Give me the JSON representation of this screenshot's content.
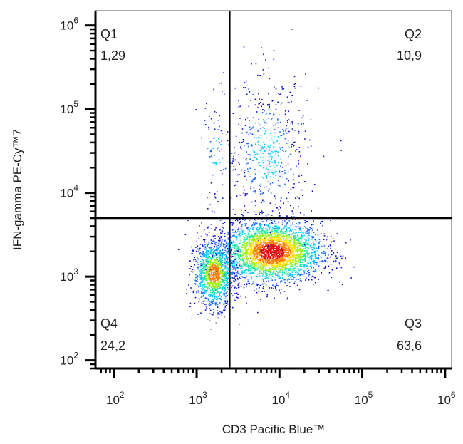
{
  "chart_data": {
    "type": "scatter",
    "plot_style": "flow-cytometry pseudocolor density dot plot",
    "xlabel": "CD3 Pacific Blue™",
    "ylabel": "IFN-gamma PE-Cy™7",
    "x_scale": "log",
    "y_scale": "log",
    "xlim": [
      60,
      1200000
    ],
    "ylim": [
      80,
      1500000
    ],
    "x_ticks": [
      {
        "base": "10",
        "exp": "2",
        "value": 100
      },
      {
        "base": "10",
        "exp": "3",
        "value": 1000
      },
      {
        "base": "10",
        "exp": "4",
        "value": 10000
      },
      {
        "base": "10",
        "exp": "5",
        "value": 100000
      },
      {
        "base": "10",
        "exp": "6",
        "value": 1000000
      }
    ],
    "y_ticks": [
      {
        "base": "10",
        "exp": "2",
        "value": 100
      },
      {
        "base": "10",
        "exp": "3",
        "value": 1000
      },
      {
        "base": "10",
        "exp": "4",
        "value": 10000
      },
      {
        "base": "10",
        "exp": "5",
        "value": 100000
      },
      {
        "base": "10",
        "exp": "6",
        "value": 1000000
      }
    ],
    "gates": {
      "x": 2500,
      "y": 5000
    },
    "quadrants": [
      {
        "name": "Q1",
        "value": "1,29",
        "position": "top-left"
      },
      {
        "name": "Q2",
        "value": "10,9",
        "position": "top-right"
      },
      {
        "name": "Q3",
        "value": "63,6",
        "position": "bottom-right"
      },
      {
        "name": "Q4",
        "value": "24,2",
        "position": "bottom-left"
      }
    ],
    "populations": [
      {
        "center_x": 8000,
        "center_y": 2000,
        "share": 0.6
      },
      {
        "center_x": 1600,
        "center_y": 1100,
        "share": 0.24
      },
      {
        "center_x": 7000,
        "center_y": 30000,
        "share": 0.11
      },
      {
        "center_x": 1800,
        "center_y": 30000,
        "share": 0.013
      }
    ],
    "density_colors": [
      "#0a10d0",
      "#1e6cff",
      "#00c8ff",
      "#20e8a0",
      "#a0f020",
      "#ffe000",
      "#ff7a00",
      "#e01010"
    ],
    "grid": false,
    "legend": "none"
  }
}
